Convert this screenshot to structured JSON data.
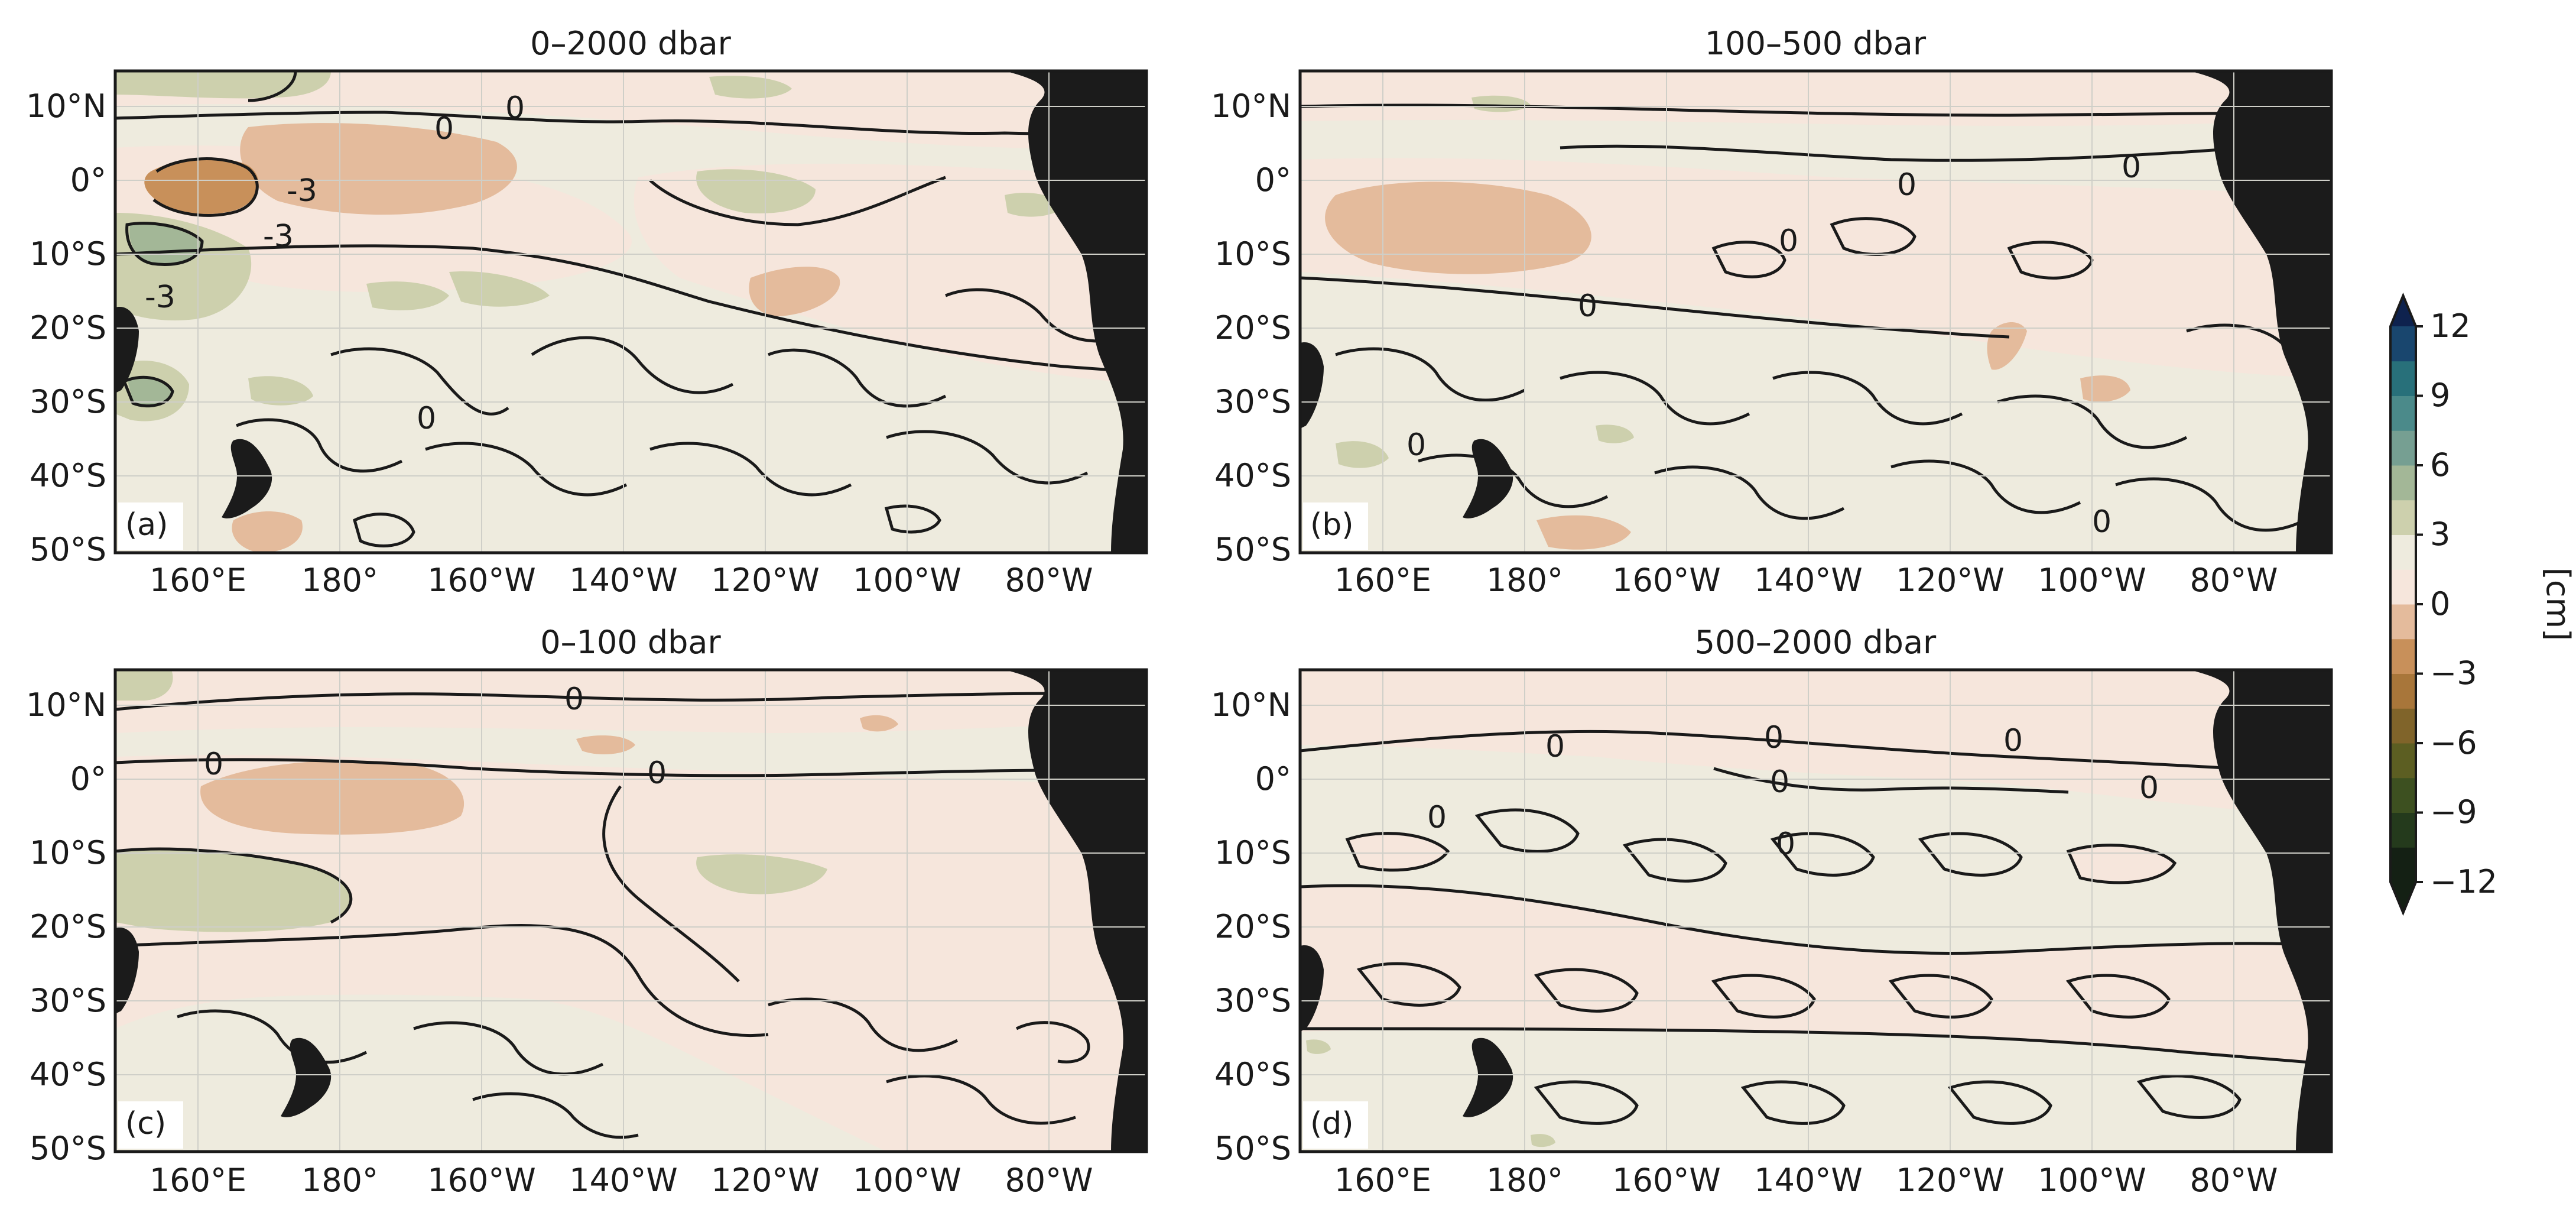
{
  "figure": {
    "panels": [
      {
        "id": "a",
        "title": "0–2000 dbar",
        "letter": "(a)",
        "contour_labels": [
          "0",
          "0",
          "-3",
          "-3",
          "-3",
          "0"
        ],
        "shading": {
          "negative_patches": 4,
          "positive_patches": 9
        }
      },
      {
        "id": "b",
        "title": "100–500 dbar",
        "letter": "(b)",
        "contour_labels": [
          "0",
          "0",
          "0",
          "0",
          "0",
          "0"
        ]
      },
      {
        "id": "c",
        "title": "0–100 dbar",
        "letter": "(c)",
        "contour_labels": [
          "0",
          "0",
          "0"
        ]
      },
      {
        "id": "d",
        "title": "500–2000 dbar",
        "letter": "(d)",
        "contour_labels": [
          "0",
          "0",
          "0",
          "0",
          "0",
          "0",
          "0"
        ]
      }
    ],
    "lon_ticks": [
      "160°E",
      "180°",
      "160°W",
      "140°W",
      "120°W",
      "100°W",
      "80°W"
    ],
    "lat_ticks": [
      "10°N",
      "0°",
      "10°S",
      "20°S",
      "30°S",
      "40°S",
      "50°S"
    ],
    "colorbar": {
      "ticks": [
        "12",
        "9",
        "6",
        "3",
        "0",
        "−3",
        "−6",
        "−9",
        "−12"
      ],
      "unit_label": "[cm]",
      "levels": [
        -12,
        -10.5,
        -9,
        -7.5,
        -6,
        -4.5,
        -3,
        -1.5,
        0,
        1.5,
        3,
        4.5,
        6,
        7.5,
        9,
        10.5,
        12
      ],
      "colors": [
        "#142014",
        "#243a1c",
        "#3d5020",
        "#5c5e22",
        "#80642a",
        "#a8763a",
        "#c8905a",
        "#e4bb9c",
        "#f6e6dc",
        "#eeebde",
        "#cdd0ad",
        "#a3b797",
        "#769f92",
        "#4b8a8a",
        "#28707a",
        "#19466e",
        "#0e224e"
      ]
    }
  },
  "colors": {
    "land": "#1b1b1b",
    "background_zero": "#eeebde",
    "negative_light": "#f6e6dc",
    "negative_mid": "#e4bb9c",
    "negative_strong": "#c8905a",
    "positive_light": "#cdd0ad",
    "positive_mid": "#a3b797",
    "contour": "#1a1a1a",
    "grid": "#cfcfc8"
  }
}
